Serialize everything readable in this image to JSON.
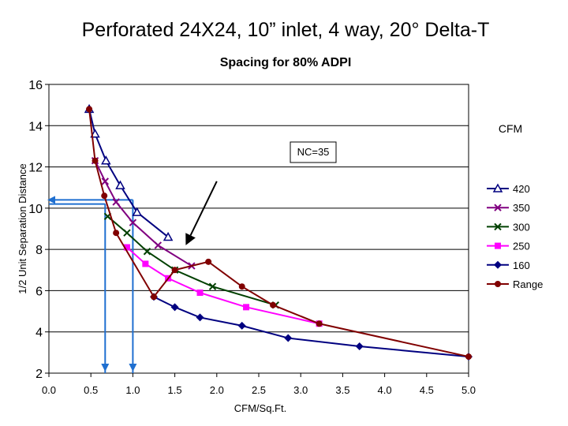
{
  "chart_data": {
    "type": "line",
    "title": "Perforated 24X24, 10” inlet, 4 way, 20°  Delta-T",
    "subtitle": "Spacing for 80% ADPI",
    "xlabel": "CFM/Sq.Ft.",
    "ylabel": "1/2 Unit Separation Distance",
    "xlim": [
      0,
      5
    ],
    "ylim": [
      2,
      16
    ],
    "x_ticks": [
      0,
      0.5,
      1,
      1.5,
      2,
      2.5,
      3,
      3.5,
      4,
      4.5,
      5
    ],
    "x_tick_labels": [
      "0.0",
      "0.5",
      "1.0",
      "1.5",
      "2.0",
      "2.5",
      "3.0",
      "3.5",
      "4.0",
      "4.5",
      "5.0"
    ],
    "y_ticks": [
      2,
      4,
      6,
      8,
      10,
      12,
      14,
      16
    ],
    "y_tick_labels": [
      "2",
      "4",
      "6",
      "8",
      "10",
      "12",
      "14",
      "16"
    ],
    "grid": "horizontal",
    "legend_title": "CFM",
    "legend_position": "right",
    "annotation": "NC=35",
    "series": [
      {
        "name": "420",
        "color": "#000080",
        "marker": "triangle-open",
        "x": [
          0.48,
          0.55,
          0.68,
          0.85,
          1.05,
          1.42
        ],
        "y": [
          14.8,
          13.6,
          12.3,
          11.1,
          9.8,
          8.6
        ]
      },
      {
        "name": "350",
        "color": "#800080",
        "marker": "x",
        "x": [
          0.55,
          0.67,
          0.8,
          1.0,
          1.3,
          1.7
        ],
        "y": [
          12.3,
          11.3,
          10.3,
          9.3,
          8.2,
          7.2
        ]
      },
      {
        "name": "300",
        "color": "#004000",
        "marker": "x",
        "x": [
          0.7,
          0.93,
          1.17,
          1.5,
          1.95,
          2.7
        ],
        "y": [
          9.6,
          8.8,
          7.9,
          7.0,
          6.2,
          5.3
        ]
      },
      {
        "name": "250",
        "color": "#ff00ff",
        "marker": "square",
        "x": [
          0.93,
          1.15,
          1.42,
          1.8,
          2.35,
          3.22
        ],
        "y": [
          8.1,
          7.3,
          6.6,
          5.9,
          5.2,
          4.4
        ]
      },
      {
        "name": "160",
        "color": "#000080",
        "marker": "diamond",
        "x": [
          1.25,
          1.5,
          1.8,
          2.3,
          2.85,
          3.7,
          5.0
        ],
        "y": [
          5.7,
          5.2,
          4.7,
          4.3,
          3.7,
          3.3,
          2.8
        ]
      },
      {
        "name": "Range",
        "color": "#800000",
        "marker": "circle",
        "x": [
          0.48,
          0.55,
          0.66,
          0.8,
          1.25,
          1.5,
          1.9,
          2.3,
          2.67,
          3.22,
          5.0
        ],
        "y": [
          14.8,
          12.3,
          10.6,
          8.8,
          5.7,
          7.0,
          7.4,
          6.2,
          5.3,
          4.4,
          2.8
        ]
      }
    ],
    "guide_lines": {
      "color": "#1f6fd0",
      "lines": [
        {
          "y": 10.4,
          "x_from": 0.0,
          "x_to": 1.0
        },
        {
          "y": 10.2,
          "x_from": 0.0,
          "x_to": 0.67
        },
        {
          "x": 1.0,
          "y_from": 10.4,
          "y_to": 2.0
        },
        {
          "x": 0.67,
          "y_from": 10.2,
          "y_to": 2.0
        }
      ]
    },
    "arrow": {
      "from": [
        2.0,
        11.3
      ],
      "to": [
        1.63,
        8.2
      ]
    }
  }
}
